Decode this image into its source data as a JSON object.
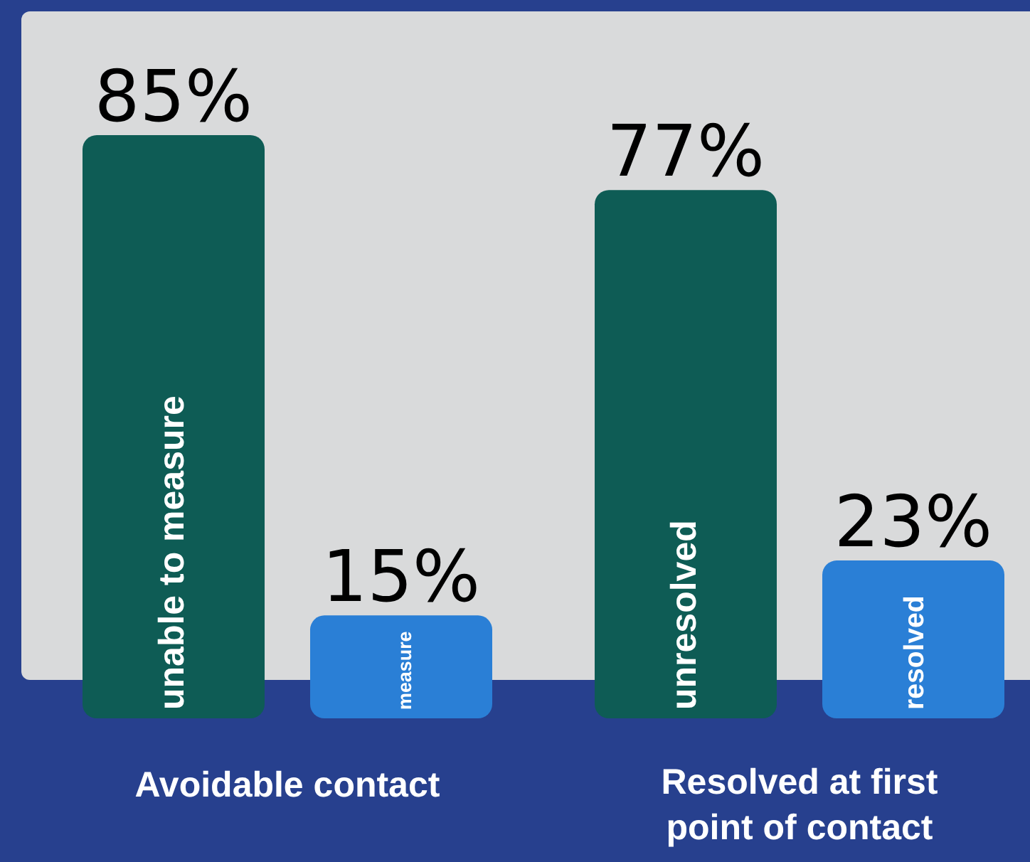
{
  "chart_data": {
    "type": "bar",
    "categories": [
      "Avoidable contact",
      "Resolved at first point of contact"
    ],
    "series": [
      {
        "color": "#0e5c55",
        "values": [
          85,
          77
        ],
        "value_labels": [
          "85%",
          "77%"
        ]
      },
      {
        "color": "#2a7fd6",
        "values": [
          15,
          23
        ],
        "value_labels": [
          "15%",
          "23%"
        ]
      }
    ],
    "annotations": [
      "unable to measure",
      "measure",
      "unresolved",
      "resolved"
    ],
    "grid": false
  }
}
